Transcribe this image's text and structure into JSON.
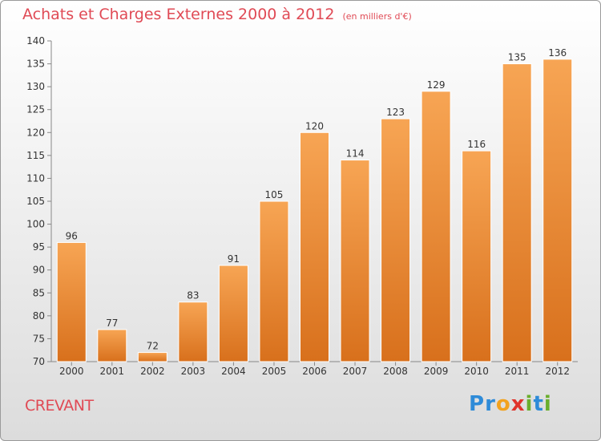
{
  "chart_data": {
    "type": "bar",
    "title": "Achats et Charges Externes 2000 à 2012",
    "subtitle": "(en milliers d'€)",
    "categories": [
      "2000",
      "2001",
      "2002",
      "2003",
      "2004",
      "2005",
      "2006",
      "2007",
      "2008",
      "2009",
      "2010",
      "2011",
      "2012"
    ],
    "values": [
      96,
      77,
      72,
      83,
      91,
      105,
      120,
      114,
      123,
      129,
      116,
      135,
      136
    ],
    "ylim": [
      70,
      140
    ],
    "yticks": [
      70,
      75,
      80,
      85,
      90,
      95,
      100,
      105,
      110,
      115,
      120,
      125,
      130,
      135,
      140
    ],
    "grid": false,
    "legend": "none"
  },
  "colors": {
    "title": "#e04a55",
    "bar_light": "#f7a554",
    "bar_dark": "#d8701c"
  },
  "footer": {
    "location": "CREVANT"
  },
  "logo": {
    "text": "Proxiti",
    "letters": [
      {
        "char": "P",
        "color": "#2e8bd8"
      },
      {
        "char": "r",
        "color": "#2e8bd8"
      },
      {
        "char": "o",
        "color": "#f2a21f"
      },
      {
        "char": "x",
        "color": "#e0332b"
      },
      {
        "char": "i",
        "color": "#6aae2c"
      },
      {
        "char": "t",
        "color": "#2e8bd8"
      },
      {
        "char": "i",
        "color": "#6aae2c"
      }
    ]
  }
}
